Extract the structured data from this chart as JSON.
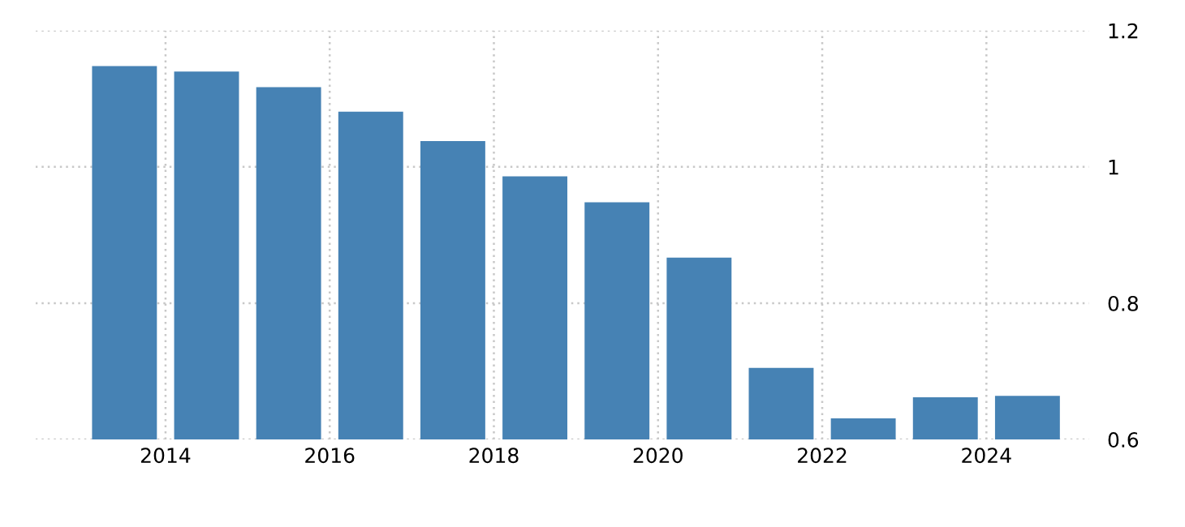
{
  "chart_data": {
    "type": "bar",
    "x": [
      "2013-07",
      "2014-07",
      "2015-07",
      "2016-07",
      "2017-07",
      "2018-07",
      "2019-07",
      "2020-07",
      "2021-07",
      "2022-07",
      "2023-07",
      "2024-07"
    ],
    "values": [
      1.148,
      1.14,
      1.117,
      1.081,
      1.038,
      0.986,
      0.948,
      0.867,
      0.705,
      0.631,
      0.662,
      0.664
    ],
    "color": "#4682b4",
    "xlim": [
      "2012-06",
      "2025-04"
    ],
    "xticks": [
      {
        "value": "2014",
        "label": "2014"
      },
      {
        "value": "2016",
        "label": "2016"
      },
      {
        "value": "2018",
        "label": "2018"
      },
      {
        "value": "2020",
        "label": "2020"
      },
      {
        "value": "2022",
        "label": "2022"
      },
      {
        "value": "2024",
        "label": "2024"
      }
    ],
    "ylim": [
      0.6,
      1.2
    ],
    "yticks": [
      0.6,
      0.8,
      1,
      1.2
    ],
    "grid": true,
    "legend": false
  }
}
